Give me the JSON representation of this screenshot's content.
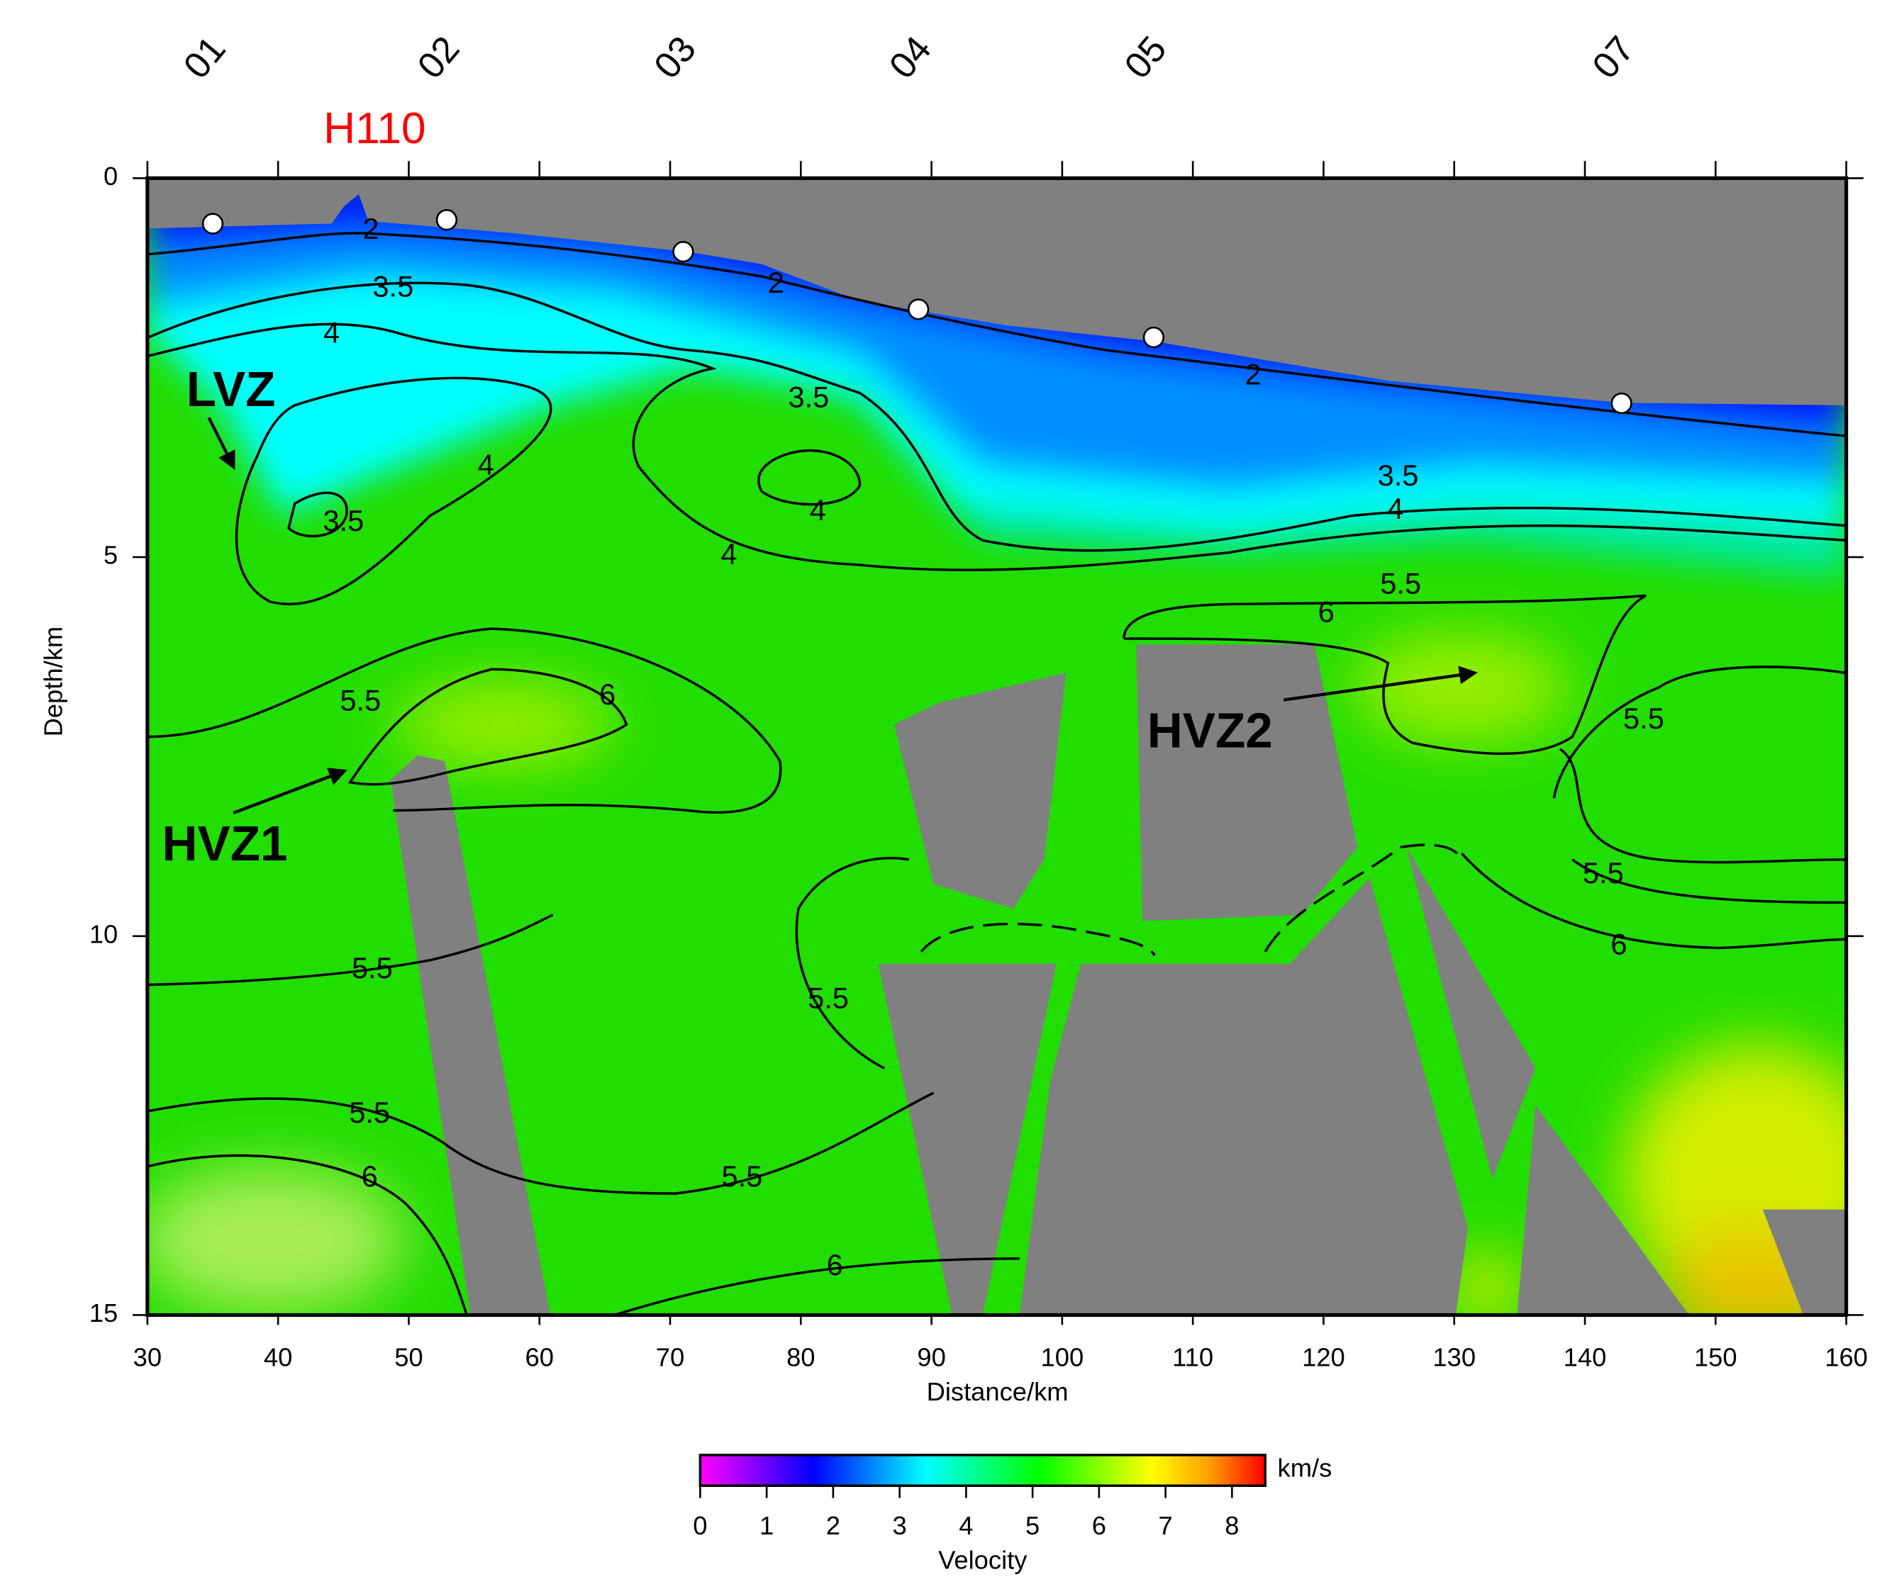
{
  "chart_data": {
    "type": "velocity-section",
    "title": "H110",
    "title_color": "#ff0000",
    "xlabel": "Distance/km",
    "ylabel": "Depth/km",
    "xlim": [
      30,
      160
    ],
    "ylim": [
      0,
      15
    ],
    "y_inverted": true,
    "xticks": [
      30,
      40,
      50,
      60,
      70,
      80,
      90,
      100,
      110,
      120,
      130,
      140,
      150,
      160
    ],
    "yticks": [
      0,
      5,
      10,
      15
    ],
    "stations": [
      {
        "name": "01",
        "x": 35,
        "depth": 0.6
      },
      {
        "name": "02",
        "x": 52.9,
        "depth": 0.55
      },
      {
        "name": "03",
        "x": 71,
        "depth": 0.97
      },
      {
        "name": "04",
        "x": 89,
        "depth": 1.73
      },
      {
        "name": "05",
        "x": 107,
        "depth": 2.1
      },
      {
        "name": "07",
        "x": 142.8,
        "depth": 2.97
      }
    ],
    "contour_labels": [
      {
        "label": 2,
        "x": 47.1,
        "depth": 0.7
      },
      {
        "label": 3.5,
        "x": 48.8,
        "depth": 1.46
      },
      {
        "label": 4,
        "x": 44.1,
        "depth": 2.07
      },
      {
        "label": 3.5,
        "x": 45.0,
        "depth": 4.55
      },
      {
        "label": 4,
        "x": 55.9,
        "depth": 3.81
      },
      {
        "label": 2,
        "x": 78.1,
        "depth": 1.41
      },
      {
        "label": 3.5,
        "x": 80.6,
        "depth": 2.92
      },
      {
        "label": 4,
        "x": 81.3,
        "depth": 4.41
      },
      {
        "label": 4,
        "x": 74.5,
        "depth": 4.99
      },
      {
        "label": 2,
        "x": 114.6,
        "depth": 2.62
      },
      {
        "label": 3.5,
        "x": 125.7,
        "depth": 3.95
      },
      {
        "label": 4,
        "x": 125.5,
        "depth": 4.39
      },
      {
        "label": 5.5,
        "x": 125.9,
        "depth": 5.38
      },
      {
        "label": 6,
        "x": 120.2,
        "depth": 5.75
      },
      {
        "label": 5.5,
        "x": 46.3,
        "depth": 6.92
      },
      {
        "label": 6,
        "x": 65.2,
        "depth": 6.84
      },
      {
        "label": 5.5,
        "x": 144.5,
        "depth": 7.16
      },
      {
        "label": 5.5,
        "x": 141.4,
        "depth": 9.2
      },
      {
        "label": 6,
        "x": 142.6,
        "depth": 10.14
      },
      {
        "label": 5.5,
        "x": 47.2,
        "depth": 10.45
      },
      {
        "label": 5.5,
        "x": 82.1,
        "depth": 10.85
      },
      {
        "label": 5.5,
        "x": 47.0,
        "depth": 12.36
      },
      {
        "label": 6,
        "x": 47.0,
        "depth": 13.2
      },
      {
        "label": 5.5,
        "x": 75.5,
        "depth": 13.2
      },
      {
        "label": 6,
        "x": 82.6,
        "depth": 14.37
      }
    ],
    "annotations": [
      "LVZ",
      "HVZ1",
      "HVZ2"
    ],
    "colorbar": {
      "label": "Velocity",
      "unit": "km/s",
      "lim": [
        0,
        8.5
      ],
      "ticks": [
        0,
        1,
        2,
        3,
        4,
        5,
        6,
        7,
        8
      ],
      "colors": [
        "#ff00ff",
        "#8000ff",
        "#0000ff",
        "#0080ff",
        "#00ffff",
        "#00ff80",
        "#00ff00",
        "#80ff00",
        "#ffff00",
        "#ffa000",
        "#ff0000"
      ]
    }
  }
}
